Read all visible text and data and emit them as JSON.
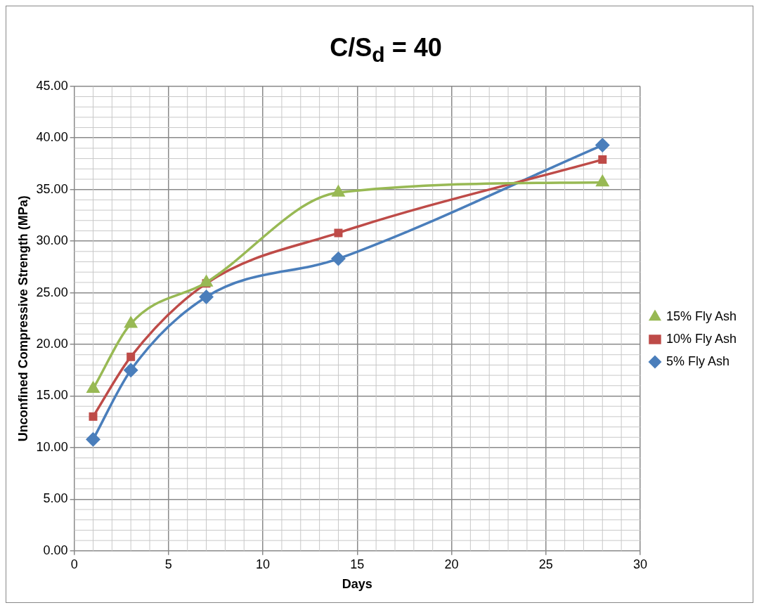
{
  "chart_data": {
    "type": "line",
    "title": "C/S$_{d}$ = 40",
    "xlabel": "Days",
    "ylabel": "Unconfined Compressive Strength (MPa)",
    "x": [
      1,
      3,
      7,
      14,
      28
    ],
    "series": [
      {
        "name": "5% Fly Ash",
        "color": "#4a7ebb",
        "marker": "diamond",
        "values": [
          10.8,
          17.5,
          24.6,
          28.3,
          39.3
        ]
      },
      {
        "name": "10% Fly Ash",
        "color": "#be4b48",
        "marker": "square",
        "values": [
          13.0,
          18.8,
          25.9,
          30.8,
          37.9
        ]
      },
      {
        "name": "15% Fly Ash",
        "color": "#98b954",
        "marker": "triangle",
        "values": [
          15.7,
          22.0,
          26.0,
          34.7,
          35.7
        ]
      }
    ],
    "xlim": [
      0,
      30
    ],
    "xticks": [
      0,
      5,
      10,
      15,
      20,
      25,
      30
    ],
    "ylim": [
      0,
      45
    ],
    "yticks": [
      {
        "value": 0,
        "label": "0.00"
      },
      {
        "value": 5,
        "label": "5.00"
      },
      {
        "value": 10,
        "label": "10.00"
      },
      {
        "value": 15,
        "label": "15.00"
      },
      {
        "value": 20,
        "label": "20.00"
      },
      {
        "value": 25,
        "label": "25.00"
      },
      {
        "value": 30,
        "label": "30.00"
      },
      {
        "value": 35,
        "label": "35.00"
      },
      {
        "value": 40,
        "label": "40.00"
      },
      {
        "value": 45,
        "label": "45.00"
      }
    ],
    "grid": true,
    "legend": "right",
    "line_style": "solid"
  }
}
